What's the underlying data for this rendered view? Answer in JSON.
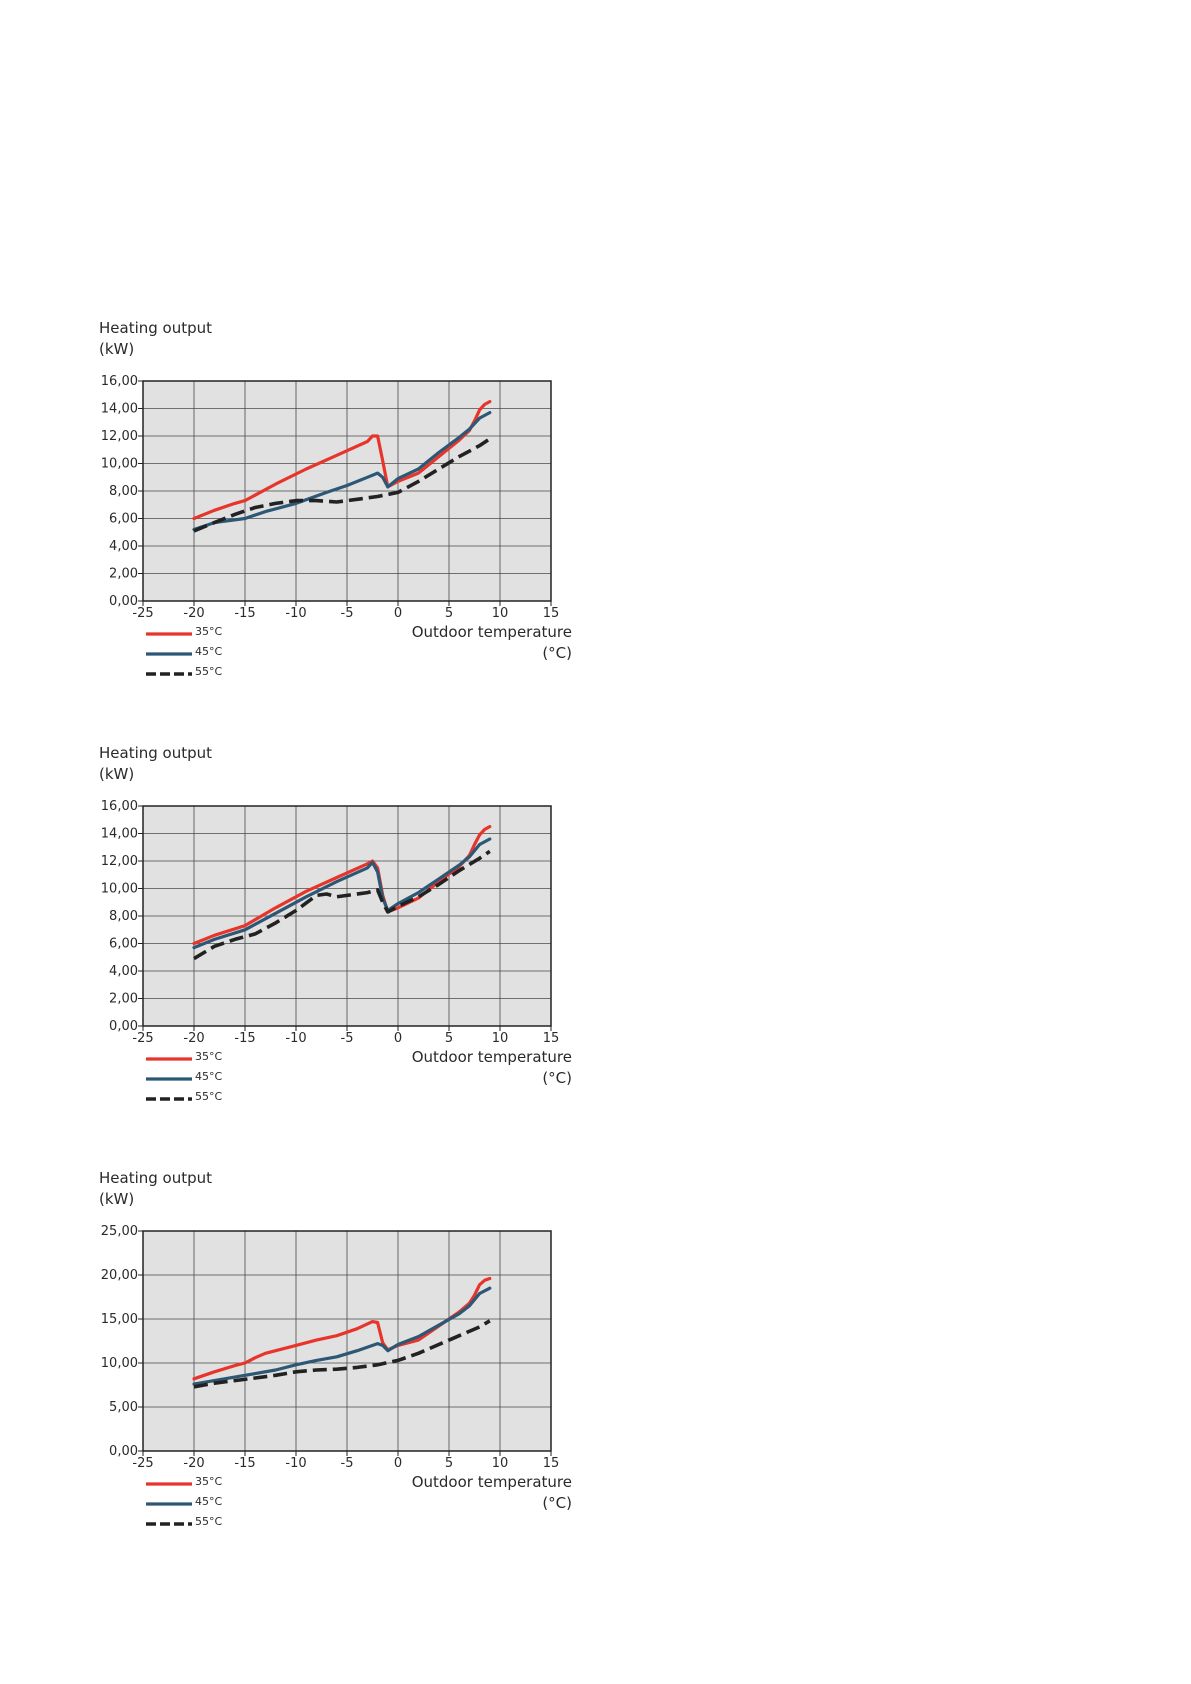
{
  "chart_data": [
    {
      "type": "line",
      "ylabel": "Heating output\n(kW)",
      "xlabel": "Outdoor temperature\n(°C)",
      "xlim": [
        -25,
        15
      ],
      "ylim": [
        0,
        16
      ],
      "xticks": [
        -25,
        -20,
        -15,
        -10,
        -5,
        0,
        5,
        10,
        15
      ],
      "xtick_labels": [
        "-25",
        "-20",
        "-15",
        "-10",
        "-5",
        "0",
        "5",
        "10",
        "15"
      ],
      "yticks": [
        0,
        2,
        4,
        6,
        8,
        10,
        12,
        14,
        16
      ],
      "ytick_labels": [
        "0,00",
        "2,00",
        "4,00",
        "6,00",
        "8,00",
        "10,00",
        "12,00",
        "14,00",
        "16,00"
      ],
      "grid": true,
      "legend_position": "bottom-left",
      "series": [
        {
          "name": "35°C",
          "color": "#e8352b",
          "dash": "solid",
          "x": [
            -20,
            -18,
            -16,
            -15,
            -12,
            -9,
            -6,
            -3,
            -2.5,
            -2,
            -1.5,
            -1,
            0,
            2,
            4,
            6,
            7,
            7.5,
            8,
            8.5,
            9
          ],
          "y": [
            6.0,
            6.6,
            7.1,
            7.3,
            8.5,
            9.6,
            10.6,
            11.6,
            12.0,
            12.0,
            10.2,
            8.3,
            8.7,
            9.3,
            10.5,
            11.7,
            12.4,
            13.1,
            13.9,
            14.3,
            14.5
          ]
        },
        {
          "name": "45°C",
          "color": "#2c5875",
          "dash": "solid",
          "x": [
            -20,
            -18,
            -15,
            -13,
            -10,
            -7,
            -5,
            -3,
            -2,
            -1.5,
            -1,
            0,
            2,
            4,
            6,
            7,
            8,
            9
          ],
          "y": [
            5.2,
            5.7,
            6.0,
            6.5,
            7.1,
            7.9,
            8.4,
            9.0,
            9.3,
            9.0,
            8.3,
            8.9,
            9.6,
            10.8,
            11.9,
            12.5,
            13.3,
            13.7
          ]
        },
        {
          "name": "55°C",
          "color": "#222222",
          "dash": "dashed",
          "x": [
            -20,
            -18,
            -16,
            -14,
            -12,
            -10,
            -8,
            -6,
            -4,
            -2,
            0,
            2,
            4,
            6,
            8,
            9
          ],
          "y": [
            5.1,
            5.7,
            6.3,
            6.8,
            7.1,
            7.3,
            7.3,
            7.2,
            7.4,
            7.6,
            7.9,
            8.7,
            9.6,
            10.5,
            11.3,
            11.8
          ]
        }
      ]
    },
    {
      "type": "line",
      "ylabel": "Heating output\n(kW)",
      "xlabel": "Outdoor temperature\n(°C)",
      "xlim": [
        -25,
        15
      ],
      "ylim": [
        0,
        16
      ],
      "xticks": [
        -25,
        -20,
        -15,
        -10,
        -5,
        0,
        5,
        10,
        15
      ],
      "xtick_labels": [
        "-25",
        "-20",
        "-15",
        "-10",
        "-5",
        "0",
        "5",
        "10",
        "15"
      ],
      "yticks": [
        0,
        2,
        4,
        6,
        8,
        10,
        12,
        14,
        16
      ],
      "ytick_labels": [
        "0,00",
        "2,00",
        "4,00",
        "6,00",
        "8,00",
        "10,00",
        "12,00",
        "14,00",
        "16,00"
      ],
      "grid": true,
      "legend_position": "bottom-left",
      "series": [
        {
          "name": "35°C",
          "color": "#e8352b",
          "dash": "solid",
          "x": [
            -20,
            -18,
            -15,
            -12,
            -9,
            -6,
            -3,
            -2.5,
            -2,
            -1.5,
            -1,
            0,
            2,
            4,
            6,
            7,
            7.5,
            8,
            8.5,
            9
          ],
          "y": [
            6.0,
            6.6,
            7.3,
            8.6,
            9.8,
            10.8,
            11.8,
            12.0,
            11.5,
            9.5,
            8.3,
            8.6,
            9.3,
            10.5,
            11.6,
            12.4,
            13.2,
            13.9,
            14.3,
            14.5
          ]
        },
        {
          "name": "45°C",
          "color": "#2c5875",
          "dash": "solid",
          "x": [
            -20,
            -18,
            -15,
            -12,
            -9,
            -6,
            -3,
            -2.5,
            -2,
            -1.5,
            -1,
            0,
            2,
            4,
            6,
            7,
            8,
            9
          ],
          "y": [
            5.7,
            6.3,
            7.0,
            8.2,
            9.4,
            10.5,
            11.5,
            11.9,
            11.2,
            9.3,
            8.4,
            8.9,
            9.7,
            10.7,
            11.7,
            12.3,
            13.2,
            13.6
          ]
        },
        {
          "name": "55°C",
          "color": "#222222",
          "dash": "dashed",
          "x": [
            -20,
            -18,
            -16,
            -14,
            -12,
            -10,
            -8,
            -7,
            -6,
            -5,
            -3,
            -2,
            -1.5,
            -1,
            0,
            2,
            4,
            6,
            8,
            9
          ],
          "y": [
            4.9,
            5.8,
            6.3,
            6.7,
            7.5,
            8.4,
            9.5,
            9.6,
            9.4,
            9.5,
            9.7,
            9.9,
            9.0,
            8.3,
            8.7,
            9.4,
            10.3,
            11.3,
            12.2,
            12.7
          ]
        }
      ]
    },
    {
      "type": "line",
      "ylabel": "Heating output\n(kW)",
      "xlabel": "Outdoor temperature\n(°C)",
      "xlim": [
        -25,
        15
      ],
      "ylim": [
        0,
        25
      ],
      "xticks": [
        -25,
        -20,
        -15,
        -10,
        -5,
        0,
        5,
        10,
        15
      ],
      "xtick_labels": [
        "-25",
        "-20",
        "-15",
        "-10",
        "-5",
        "0",
        "5",
        "10",
        "15"
      ],
      "yticks": [
        0,
        5,
        10,
        15,
        20,
        25
      ],
      "ytick_labels": [
        "0,00",
        "5,00",
        "10,00",
        "15,00",
        "20,00",
        "25,00"
      ],
      "grid": true,
      "legend_position": "bottom-left",
      "series": [
        {
          "name": "35°C",
          "color": "#e8352b",
          "dash": "solid",
          "x": [
            -20,
            -18,
            -16,
            -15,
            -14,
            -13,
            -12,
            -10,
            -8,
            -6,
            -4,
            -2.5,
            -2,
            -1.5,
            -1,
            0,
            2,
            4,
            6,
            7,
            7.5,
            8,
            8.5,
            9
          ],
          "y": [
            8.2,
            9.0,
            9.7,
            10.0,
            10.6,
            11.1,
            11.4,
            12.0,
            12.6,
            13.1,
            13.9,
            14.7,
            14.6,
            12.3,
            11.5,
            12.0,
            12.6,
            14.2,
            15.8,
            16.8,
            17.7,
            18.9,
            19.4,
            19.6
          ]
        },
        {
          "name": "45°C",
          "color": "#2c5875",
          "dash": "solid",
          "x": [
            -20,
            -18,
            -16,
            -14,
            -12,
            -10,
            -8,
            -6,
            -4,
            -2,
            -1.5,
            -1,
            0,
            2,
            4,
            6,
            7,
            8,
            9
          ],
          "y": [
            7.6,
            8.0,
            8.4,
            8.8,
            9.2,
            9.8,
            10.3,
            10.7,
            11.4,
            12.2,
            12.0,
            11.4,
            12.1,
            13.0,
            14.3,
            15.6,
            16.5,
            17.9,
            18.5
          ]
        },
        {
          "name": "55°C",
          "color": "#222222",
          "dash": "dashed",
          "x": [
            -20,
            -18,
            -16,
            -14,
            -12,
            -10,
            -8,
            -6,
            -4,
            -2,
            0,
            2,
            4,
            6,
            8,
            9
          ],
          "y": [
            7.3,
            7.7,
            8.0,
            8.3,
            8.6,
            9.0,
            9.2,
            9.3,
            9.5,
            9.8,
            10.3,
            11.1,
            12.1,
            13.1,
            14.1,
            14.8
          ]
        }
      ]
    }
  ]
}
